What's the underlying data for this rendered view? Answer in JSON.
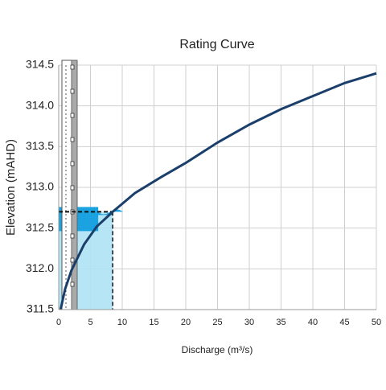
{
  "chart_data": {
    "type": "line",
    "title": "Rating Curve",
    "x_label": "Discharge (m³/s)",
    "y_label": "Elevation (mAHD)",
    "series": [
      {
        "name": "Rating curve",
        "color": "#1b3f6b",
        "x": [
          0.3,
          1,
          2,
          4,
          6,
          8.5,
          12,
          16,
          20,
          25,
          30,
          35,
          40,
          45,
          50
        ],
        "values": [
          311.5,
          311.75,
          311.98,
          312.3,
          312.52,
          312.7,
          312.93,
          313.12,
          313.3,
          313.55,
          313.77,
          313.96,
          314.12,
          314.28,
          314.4
        ]
      }
    ],
    "marker": {
      "x": 8.5,
      "y": 312.7
    },
    "xlim": [
      0,
      50
    ],
    "xticks": [
      0,
      5,
      10,
      15,
      20,
      25,
      30,
      35,
      40,
      45,
      50
    ],
    "ylim": [
      311.5,
      314.5
    ],
    "yticks": [
      311.5,
      {
        "value": 312,
        "label": "312.0"
      },
      312.5,
      {
        "value": 313,
        "label": "313.0"
      },
      313.5,
      {
        "value": 314,
        "label": "314.0"
      },
      314.5
    ],
    "grid": true
  }
}
